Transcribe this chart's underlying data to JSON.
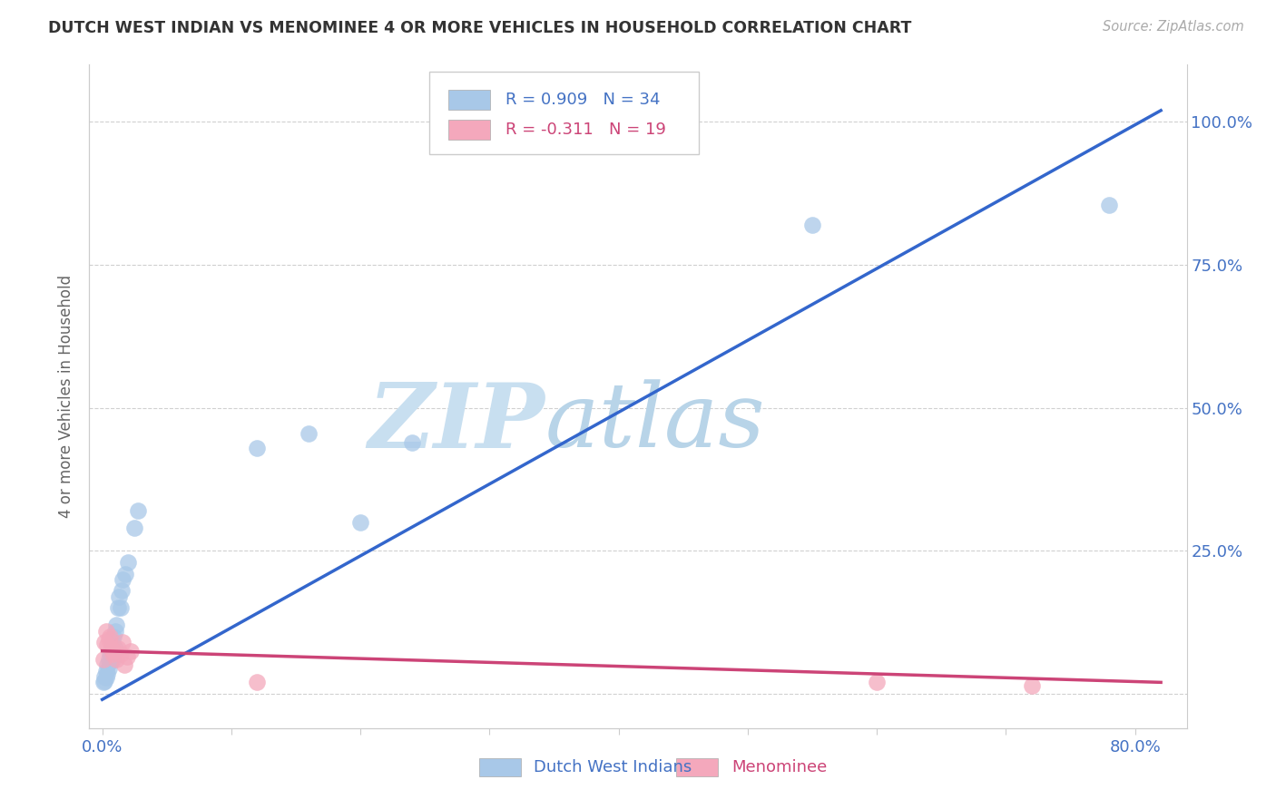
{
  "title": "DUTCH WEST INDIAN VS MENOMINEE 4 OR MORE VEHICLES IN HOUSEHOLD CORRELATION CHART",
  "source": "Source: ZipAtlas.com",
  "ylabel": "4 or more Vehicles in Household",
  "legend_blue_label": "Dutch West Indians",
  "legend_pink_label": "Menominee",
  "blue_color": "#a8c8e8",
  "blue_line_color": "#3366cc",
  "pink_color": "#f4a8bc",
  "pink_line_color": "#cc4477",
  "blue_scatter_x": [
    0.001,
    0.002,
    0.002,
    0.003,
    0.003,
    0.004,
    0.004,
    0.005,
    0.005,
    0.006,
    0.006,
    0.007,
    0.007,
    0.008,
    0.008,
    0.009,
    0.01,
    0.01,
    0.011,
    0.012,
    0.013,
    0.014,
    0.015,
    0.016,
    0.018,
    0.02,
    0.025,
    0.028,
    0.12,
    0.16,
    0.2,
    0.24,
    0.55,
    0.78
  ],
  "blue_scatter_y": [
    0.02,
    0.03,
    0.022,
    0.04,
    0.028,
    0.05,
    0.035,
    0.06,
    0.045,
    0.07,
    0.055,
    0.08,
    0.065,
    0.09,
    0.06,
    0.1,
    0.08,
    0.11,
    0.12,
    0.15,
    0.17,
    0.15,
    0.18,
    0.2,
    0.21,
    0.23,
    0.29,
    0.32,
    0.43,
    0.455,
    0.3,
    0.44,
    0.82,
    0.855
  ],
  "pink_scatter_x": [
    0.001,
    0.002,
    0.003,
    0.004,
    0.005,
    0.006,
    0.007,
    0.008,
    0.009,
    0.011,
    0.012,
    0.014,
    0.016,
    0.017,
    0.019,
    0.022,
    0.12,
    0.6,
    0.72
  ],
  "pink_scatter_y": [
    0.06,
    0.09,
    0.11,
    0.085,
    0.095,
    0.1,
    0.08,
    0.07,
    0.075,
    0.06,
    0.08,
    0.07,
    0.09,
    0.05,
    0.065,
    0.075,
    0.02,
    0.02,
    0.015
  ],
  "blue_line_x0": 0.0,
  "blue_line_x1": 0.82,
  "blue_line_y0": -0.01,
  "blue_line_y1": 1.02,
  "pink_line_x0": 0.0,
  "pink_line_x1": 0.82,
  "pink_line_y0": 0.075,
  "pink_line_y1": 0.02,
  "xlim": [
    -0.01,
    0.84
  ],
  "ylim": [
    -0.06,
    1.1
  ],
  "xtick_positions": [
    0.0,
    0.1,
    0.2,
    0.3,
    0.4,
    0.5,
    0.6,
    0.7,
    0.8
  ],
  "xtick_labels": [
    "0.0%",
    "",
    "",
    "",
    "",
    "",
    "",
    "",
    "80.0%"
  ],
  "ytick_positions": [
    0.0,
    0.25,
    0.5,
    0.75,
    1.0
  ],
  "ytick_labels_right": [
    "",
    "25.0%",
    "50.0%",
    "75.0%",
    "100.0%"
  ],
  "grid_color": "#d0d0d0",
  "background_color": "#ffffff",
  "tick_color": "#4472c4",
  "watermark_zip": "ZIP",
  "watermark_atlas": "atlas",
  "watermark_color": "#c8dff0"
}
